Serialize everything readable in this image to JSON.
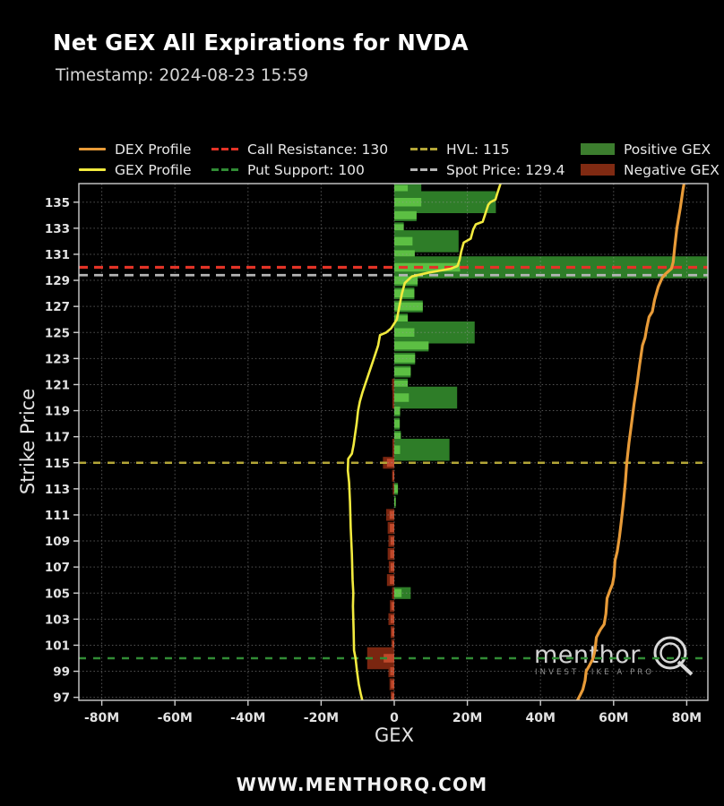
{
  "header": {
    "title": "Net GEX All Expirations for NVDA",
    "timestamp": "Timestamp: 2024-08-23 15:59"
  },
  "footer": {
    "website": "WWW.MENTHORQ.COM"
  },
  "watermark": {
    "brand": "menthor",
    "tagline": "INVEST LIKE A PRO",
    "logo": "q-circle-logo"
  },
  "legend": {
    "items": [
      {
        "id": "dex_profile",
        "label": "DEX Profile",
        "swatch": "line",
        "color": "#e89b38"
      },
      {
        "id": "call_resistance",
        "label": "Call Resistance: 130",
        "swatch": "dashes",
        "color": "#e33327"
      },
      {
        "id": "hvl",
        "label": "HVL: 115",
        "swatch": "dashes",
        "color": "#b3a637"
      },
      {
        "id": "positive_gex",
        "label": "Positive GEX",
        "swatch": "box",
        "color": "#3c7d2e"
      },
      {
        "id": "gex_profile",
        "label": "GEX Profile",
        "swatch": "line",
        "color": "#f2ea3e"
      },
      {
        "id": "put_support",
        "label": "Put Support: 100",
        "swatch": "dashes",
        "color": "#318c35"
      },
      {
        "id": "spot_price",
        "label": "Spot Price: 129.4",
        "swatch": "dashes",
        "color": "#b5b5b5"
      },
      {
        "id": "negative_gex",
        "label": "Negative GEX",
        "swatch": "box",
        "color": "#802a12"
      }
    ]
  },
  "chart_data": {
    "type": "bar",
    "orientation": "horizontal",
    "title": "Net GEX All Expirations for NVDA",
    "xlabel": "GEX",
    "ylabel": "Strike Price",
    "units": "M (millions)",
    "xlim": [
      -86,
      86
    ],
    "ylim": [
      96.8,
      136.4
    ],
    "grid": true,
    "x_ticks": [
      {
        "value": -80,
        "label": "-80M"
      },
      {
        "value": -60,
        "label": "-60M"
      },
      {
        "value": -40,
        "label": "-40M"
      },
      {
        "value": -20,
        "label": "-20M"
      },
      {
        "value": 0,
        "label": "0"
      },
      {
        "value": 20,
        "label": "20M"
      },
      {
        "value": 40,
        "label": "40M"
      },
      {
        "value": 60,
        "label": "60M"
      },
      {
        "value": 80,
        "label": "80M"
      }
    ],
    "y_ticks": [
      135,
      133,
      131,
      129,
      127,
      125,
      123,
      121,
      119,
      117,
      115,
      113,
      111,
      109,
      107,
      105,
      103,
      101,
      99,
      97
    ],
    "levels": {
      "call_resistance": 130,
      "put_support": 100,
      "hvl": 115,
      "spot_price": 129.4
    },
    "bars": [
      {
        "strike": 136,
        "value": 7.4,
        "inner": 3.7,
        "wide": false
      },
      {
        "strike": 135,
        "value": 27.8,
        "inner": 7.4,
        "wide": true
      },
      {
        "strike": 134,
        "value": 6.1,
        "inner": 6.1,
        "wide": false
      },
      {
        "strike": 133,
        "value": 2.6,
        "inner": 2.6,
        "wide": false
      },
      {
        "strike": 132,
        "value": 17.6,
        "inner": 5.0,
        "wide": true
      },
      {
        "strike": 131,
        "value": 5.6,
        "inner": 5.6,
        "wide": false
      },
      {
        "strike": 130,
        "value": 86.0,
        "inner": 18.0,
        "wide": true
      },
      {
        "strike": 129,
        "value": 6.4,
        "inner": 6.4,
        "wide": false
      },
      {
        "strike": 128,
        "value": 5.5,
        "inner": 5.5,
        "wide": false
      },
      {
        "strike": 127,
        "value": 7.8,
        "inner": 7.8,
        "wide": false
      },
      {
        "strike": 126,
        "value": 3.7,
        "inner": 3.7,
        "wide": false
      },
      {
        "strike": 125,
        "value": 22.0,
        "inner": 5.5,
        "wide": true
      },
      {
        "strike": 124,
        "value": 9.4,
        "inner": 9.4,
        "wide": false
      },
      {
        "strike": 123,
        "value": 5.7,
        "inner": 5.7,
        "wide": false
      },
      {
        "strike": 122,
        "value": 4.5,
        "inner": 4.5,
        "wide": false
      },
      {
        "strike": 121,
        "value": 3.7,
        "inner": 3.7,
        "wide": false,
        "neg": -0.6
      },
      {
        "strike": 120,
        "value": 17.2,
        "inner": 4.0,
        "wide": true,
        "neg": -0.5
      },
      {
        "strike": 119,
        "value": 1.6,
        "inner": 1.6,
        "wide": false
      },
      {
        "strike": 118,
        "value": 1.5,
        "inner": 1.5,
        "wide": false
      },
      {
        "strike": 117,
        "value": 1.8,
        "inner": 1.8,
        "wide": false
      },
      {
        "strike": 116,
        "value": 15.1,
        "inner": 1.6,
        "wide": true,
        "neg": -0.5
      },
      {
        "strike": 115,
        "value": -3.1,
        "inner": -2.0,
        "wide": false
      },
      {
        "strike": 114,
        "value": -0.6,
        "inner": -0.4,
        "wide": false
      },
      {
        "strike": 113,
        "value": 1.0,
        "inner": 1.0,
        "wide": false,
        "neg": -0.4
      },
      {
        "strike": 112,
        "value": 0.4,
        "inner": 0.4,
        "wide": false
      },
      {
        "strike": 111,
        "value": -2.2,
        "inner": -1.3,
        "wide": false
      },
      {
        "strike": 110,
        "value": -1.8,
        "inner": -1.2,
        "wide": false
      },
      {
        "strike": 109,
        "value": -1.6,
        "inner": -1.0,
        "wide": false
      },
      {
        "strike": 108,
        "value": -1.8,
        "inner": -1.1,
        "wide": false
      },
      {
        "strike": 107,
        "value": -1.5,
        "inner": -1.0,
        "wide": false
      },
      {
        "strike": 106,
        "value": -2.0,
        "inner": -1.2,
        "wide": false
      },
      {
        "strike": 105,
        "value": 4.5,
        "inner": 2.0,
        "wide": false,
        "neg": -0.6
      },
      {
        "strike": 104,
        "value": -1.2,
        "inner": -0.8,
        "wide": false
      },
      {
        "strike": 103,
        "value": -1.6,
        "inner": -1.0,
        "wide": false
      },
      {
        "strike": 102,
        "value": -1.0,
        "inner": -0.7,
        "wide": false
      },
      {
        "strike": 101,
        "value": -0.8,
        "inner": -0.5,
        "wide": false
      },
      {
        "strike": 100,
        "value": -7.4,
        "inner": -2.9,
        "wide": true
      },
      {
        "strike": 99,
        "value": -1.6,
        "inner": -1.1,
        "wide": false
      },
      {
        "strike": 98,
        "value": -1.3,
        "inner": -0.9,
        "wide": false
      },
      {
        "strike": 97,
        "value": -1.0,
        "inner": -0.7,
        "wide": false
      }
    ],
    "gex_profile": [
      [
        96.6,
        -8.6
      ],
      [
        97.3,
        -9.2
      ],
      [
        98,
        -9.7
      ],
      [
        99,
        -10.2
      ],
      [
        100,
        -10.6
      ],
      [
        100.6,
        -11.0
      ],
      [
        102,
        -11.1
      ],
      [
        104,
        -11.3
      ],
      [
        105,
        -11.2
      ],
      [
        106,
        -11.4
      ],
      [
        108,
        -11.6
      ],
      [
        110,
        -11.9
      ],
      [
        112,
        -12.1
      ],
      [
        113.5,
        -12.35
      ],
      [
        114.4,
        -12.7
      ],
      [
        115.3,
        -12.6
      ],
      [
        115.7,
        -11.6
      ],
      [
        116.4,
        -11.1
      ],
      [
        117,
        -10.8
      ],
      [
        118,
        -10.3
      ],
      [
        119,
        -9.9
      ],
      [
        119.7,
        -9.4
      ],
      [
        120.4,
        -8.7
      ],
      [
        121,
        -8.0
      ],
      [
        122,
        -6.8
      ],
      [
        123,
        -5.6
      ],
      [
        124,
        -4.4
      ],
      [
        124.8,
        -3.9
      ],
      [
        125,
        -2.2
      ],
      [
        125.3,
        -0.9
      ],
      [
        126,
        0.7
      ],
      [
        127,
        1.4
      ],
      [
        128,
        2.1
      ],
      [
        128.8,
        2.9
      ],
      [
        129.3,
        4.8
      ],
      [
        129.6,
        9.5
      ],
      [
        129.9,
        15.5
      ],
      [
        130.1,
        17.3
      ],
      [
        130.6,
        17.9
      ],
      [
        131.2,
        18.3
      ],
      [
        131.9,
        19.0
      ],
      [
        132.2,
        20.9
      ],
      [
        132.9,
        21.6
      ],
      [
        133.3,
        22.3
      ],
      [
        133.5,
        24.2
      ],
      [
        134.1,
        24.9
      ],
      [
        134.8,
        25.7
      ],
      [
        135,
        26.3
      ],
      [
        135.2,
        27.7
      ],
      [
        135.7,
        28.2
      ],
      [
        136.45,
        29.1
      ]
    ],
    "dex_profile": [
      [
        96.6,
        49.8
      ],
      [
        97.2,
        50.9
      ],
      [
        97.6,
        51.6
      ],
      [
        98.3,
        52.2
      ],
      [
        99,
        52.5
      ],
      [
        99.4,
        53.3
      ],
      [
        100,
        54.4
      ],
      [
        100.6,
        54.9
      ],
      [
        101.6,
        55.3
      ],
      [
        102.2,
        56.4
      ],
      [
        102.6,
        57.4
      ],
      [
        103.4,
        57.9
      ],
      [
        104.6,
        58.2
      ],
      [
        105.2,
        59.0
      ],
      [
        105.7,
        59.7
      ],
      [
        106.3,
        60.1
      ],
      [
        107.5,
        60.4
      ],
      [
        108.2,
        61.0
      ],
      [
        109.3,
        61.6
      ],
      [
        110.5,
        62.1
      ],
      [
        112,
        62.7
      ],
      [
        113.5,
        63.2
      ],
      [
        115,
        63.6
      ],
      [
        116.5,
        64.2
      ],
      [
        118,
        64.9
      ],
      [
        119.5,
        65.6
      ],
      [
        121,
        66.4
      ],
      [
        122.5,
        67.1
      ],
      [
        124,
        67.9
      ],
      [
        124.6,
        68.6
      ],
      [
        125.4,
        69.1
      ],
      [
        126.2,
        69.7
      ],
      [
        126.6,
        70.6
      ],
      [
        127.5,
        71.2
      ],
      [
        128.5,
        72.2
      ],
      [
        129.2,
        73.3
      ],
      [
        129.5,
        74.2
      ],
      [
        129.9,
        75.8
      ],
      [
        130.4,
        76.3
      ],
      [
        131.5,
        76.7
      ],
      [
        133,
        77.3
      ],
      [
        134.5,
        78.2
      ],
      [
        136,
        79.0
      ],
      [
        136.45,
        79.3
      ]
    ],
    "colors": {
      "positive_dark": "#2e7d28",
      "positive_bright": "#5cbf43",
      "negative_dark": "#7a2610",
      "negative_bright": "#c0482a",
      "dex_line": "#e89b38",
      "gex_line": "#f2ea3e",
      "call_resistance_line": "#e33327",
      "put_support_line": "#318c35",
      "hvl_line": "#b3a637",
      "spot_line": "#b5b5b5",
      "grid": "#9a9a9a",
      "axis_text": "#e3e3e3",
      "border": "#cdcdcd"
    }
  }
}
